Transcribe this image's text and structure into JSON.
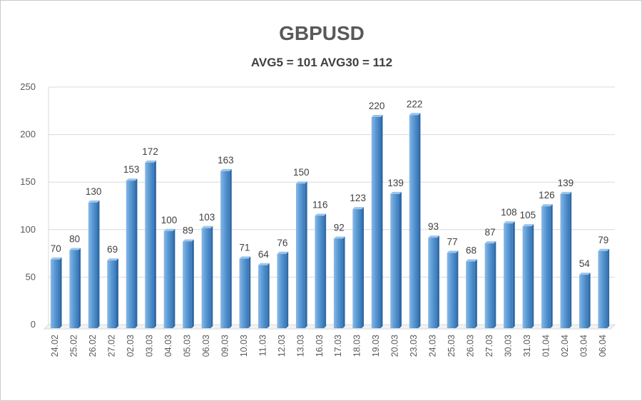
{
  "chart_data": {
    "type": "bar",
    "title": "GBPUSD",
    "subtitle": "AVG5 = 101 AVG30 = 112",
    "xlabel": "",
    "ylabel": "",
    "ylim": [
      0,
      250
    ],
    "yticks": [
      0,
      50,
      100,
      150,
      200,
      250
    ],
    "grid": true,
    "bar_color": "#5b9bd5",
    "categories": [
      "24.02",
      "25.02",
      "26.02",
      "27.02",
      "02.03",
      "03.03",
      "04.03",
      "05.03",
      "06.03",
      "09.03",
      "10.03",
      "11.03",
      "12.03",
      "13.03",
      "16.03",
      "17.03",
      "18.03",
      "19.03",
      "20.03",
      "23.03",
      "24.03",
      "25.03",
      "26.03",
      "27.03",
      "30.03",
      "31.03",
      "01.04",
      "02.04",
      "03.04",
      "06.04"
    ],
    "values": [
      70,
      80,
      130,
      69,
      153,
      172,
      100,
      89,
      103,
      163,
      71,
      64,
      76,
      150,
      116,
      92,
      123,
      220,
      139,
      222,
      93,
      77,
      68,
      87,
      108,
      105,
      126,
      139,
      54,
      79
    ]
  }
}
